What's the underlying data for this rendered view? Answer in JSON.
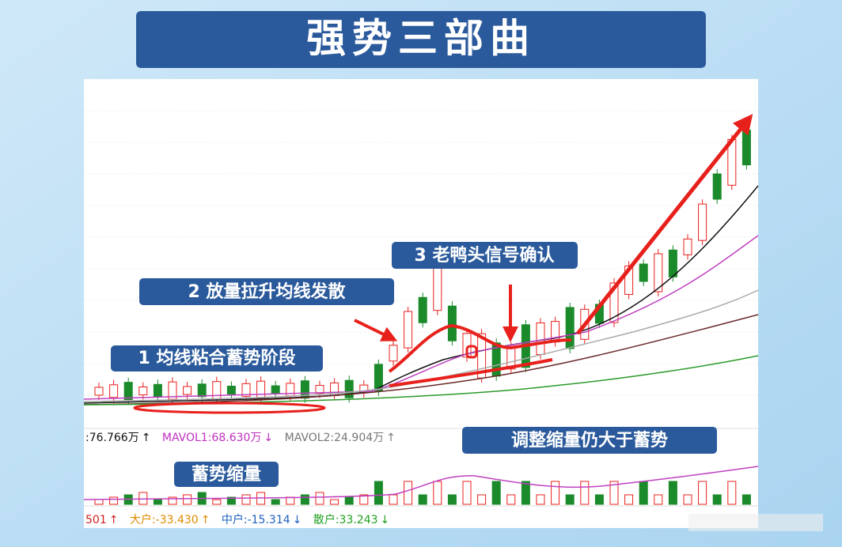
{
  "title": "强势三部曲",
  "annotations": [
    "1 均线粘合蓄势阶段",
    "2 放量拉升均线发散",
    "3 老鸭头信号确认",
    "调整缩量仍大于蓄势",
    "蓄势缩量"
  ],
  "volume_readout": [
    ":76.766万",
    "↑",
    "MAVOL1:68.630万",
    "↓",
    "MAVOL2:24.904万",
    "↑"
  ],
  "bottom_readout": [
    "501",
    "↑",
    "大户:-33.430",
    "↑",
    "中户:-15.314",
    "↓",
    "散户:33.243",
    "↓"
  ]
}
